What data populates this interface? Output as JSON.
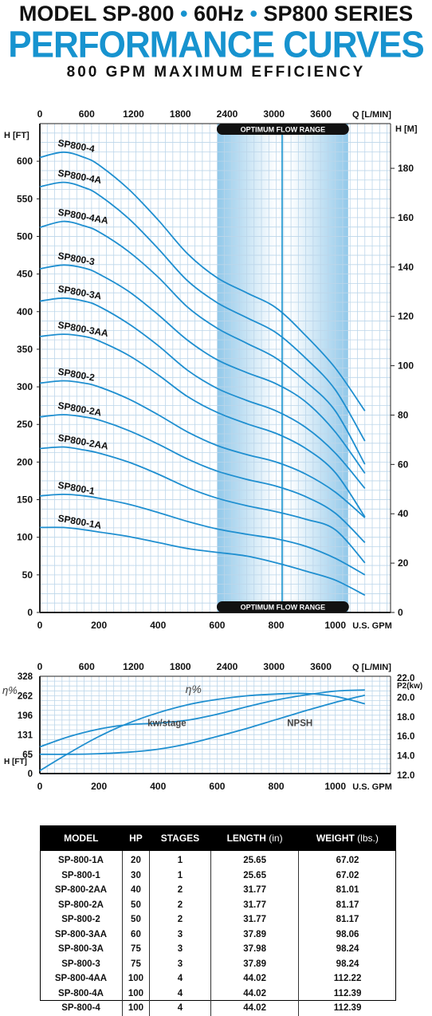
{
  "header": {
    "line1_a": "MODEL SP-800",
    "line1_sep": "•",
    "line1_b": "60Hz",
    "line1_c": "SP800 SERIES",
    "line2": "PERFORMANCE CURVES",
    "line3": "800 GPM MAXIMUM EFFICIENCY"
  },
  "colors": {
    "accent": "#1793cf",
    "curve": "#1f8fd0",
    "band": "#a9d3ef",
    "grid": "#bcd6ea"
  },
  "chart_data": [
    {
      "type": "line",
      "title": "PERFORMANCE CURVES",
      "xlabel": "U.S. GPM",
      "ylabel": "H [FT]",
      "top_axis_label": "Q [L/MIN]",
      "right_axis_label": "H [M]",
      "xlim": [
        0,
        1200
      ],
      "ylim": [
        0,
        650
      ],
      "x_ticks": [
        "0",
        "200",
        "400",
        "600",
        "800",
        "1000"
      ],
      "x_top_ticks": [
        "0",
        "600",
        "1200",
        "1800",
        "2400",
        "3000",
        "3600"
      ],
      "y_ticks": [
        "0",
        "50",
        "100",
        "150",
        "200",
        "250",
        "300",
        "350",
        "400",
        "450",
        "500",
        "550",
        "600"
      ],
      "y_right_ticks": [
        "0",
        "20",
        "40",
        "60",
        "80",
        "100",
        "120",
        "140",
        "160",
        "180"
      ],
      "band": {
        "label": "OPTIMUM FLOW RANGE",
        "x_from": 615,
        "x_to": 1030,
        "marker_x": 820
      },
      "grid": true,
      "series": [
        {
          "name": "SP800-4",
          "x": [
            0,
            80,
            150,
            200,
            300,
            400,
            500,
            600,
            700,
            800,
            900,
            1000,
            1100
          ],
          "y": [
            605,
            612,
            605,
            595,
            563,
            522,
            477,
            445,
            425,
            405,
            368,
            325,
            268
          ]
        },
        {
          "name": "SP800-4A",
          "x": [
            0,
            80,
            150,
            200,
            300,
            400,
            500,
            600,
            700,
            800,
            900,
            1000,
            1100
          ],
          "y": [
            566,
            572,
            565,
            555,
            524,
            484,
            441,
            412,
            392,
            372,
            338,
            296,
            228
          ]
        },
        {
          "name": "SP800-4AA",
          "x": [
            0,
            80,
            150,
            200,
            300,
            400,
            500,
            600,
            700,
            800,
            900,
            1000,
            1100
          ],
          "y": [
            512,
            520,
            514,
            506,
            480,
            446,
            406,
            378,
            358,
            338,
            307,
            268,
            197
          ]
        },
        {
          "name": "SP800-3",
          "x": [
            0,
            80,
            150,
            200,
            300,
            400,
            500,
            600,
            700,
            800,
            900,
            1000,
            1100
          ],
          "y": [
            457,
            462,
            458,
            450,
            427,
            396,
            362,
            336,
            319,
            304,
            280,
            240,
            185
          ]
        },
        {
          "name": "SP800-3A",
          "x": [
            0,
            80,
            150,
            200,
            300,
            400,
            500,
            600,
            700,
            800,
            900,
            1000,
            1100
          ],
          "y": [
            414,
            418,
            414,
            407,
            384,
            355,
            322,
            298,
            282,
            268,
            246,
            212,
            165
          ]
        },
        {
          "name": "SP800-3AA",
          "x": [
            0,
            80,
            150,
            200,
            300,
            400,
            500,
            600,
            700,
            800,
            900,
            1000,
            1100
          ],
          "y": [
            367,
            370,
            367,
            361,
            342,
            316,
            287,
            266,
            251,
            238,
            218,
            186,
            127
          ]
        },
        {
          "name": "SP800-2",
          "x": [
            0,
            80,
            150,
            200,
            300,
            400,
            500,
            600,
            700,
            800,
            900,
            1000,
            1100
          ],
          "y": [
            305,
            308,
            305,
            300,
            284,
            263,
            240,
            222,
            210,
            200,
            184,
            160,
            126
          ]
        },
        {
          "name": "SP800-2A",
          "x": [
            0,
            80,
            150,
            200,
            300,
            400,
            500,
            600,
            700,
            800,
            900,
            1000,
            1100
          ],
          "y": [
            260,
            263,
            260,
            256,
            242,
            224,
            204,
            188,
            177,
            168,
            154,
            132,
            93
          ]
        },
        {
          "name": "SP800-2AA",
          "x": [
            0,
            80,
            150,
            200,
            300,
            400,
            500,
            600,
            700,
            800,
            900,
            1000,
            1100
          ],
          "y": [
            218,
            220,
            216,
            212,
            200,
            184,
            166,
            152,
            142,
            134,
            124,
            110,
            66
          ]
        },
        {
          "name": "SP800-1",
          "x": [
            0,
            80,
            150,
            200,
            300,
            400,
            500,
            600,
            700,
            800,
            900,
            1000,
            1100
          ],
          "y": [
            155,
            157,
            155,
            152,
            144,
            133,
            121,
            111,
            104,
            98,
            88,
            72,
            50
          ]
        },
        {
          "name": "SP800-1A",
          "x": [
            0,
            80,
            150,
            200,
            300,
            400,
            500,
            600,
            700,
            800,
            900,
            1000,
            1100
          ],
          "y": [
            113,
            113,
            110,
            107,
            101,
            93,
            85,
            80,
            75,
            66,
            55,
            43,
            23
          ]
        }
      ]
    },
    {
      "type": "line",
      "xlabel": "U.S. GPM",
      "ylabel": "H [FT]",
      "top_axis_label": "Q [L/MIN]",
      "right_axis_label": "P2(kw)",
      "xlim": [
        0,
        1200
      ],
      "ylim": [
        0,
        328
      ],
      "y_ticks": [
        "0",
        "65",
        "131",
        "196",
        "262",
        "328"
      ],
      "y_ticks_left_label": "η%",
      "x_ticks": [
        "0",
        "200",
        "400",
        "600",
        "800",
        "1000"
      ],
      "x_top_ticks": [
        "0",
        "600",
        "1200",
        "1800",
        "2400",
        "3000",
        "3600"
      ],
      "y_right_ticks": [
        "12.0",
        "14.0",
        "16.0",
        "18.0",
        "20.0",
        "22.0"
      ],
      "y_right_range": [
        12,
        22
      ],
      "annotations": [
        {
          "text": "η%",
          "x": 520,
          "y": 272
        },
        {
          "text": "kw/stage",
          "x": 430,
          "y": 160
        },
        {
          "text": "NPSH",
          "x": 880,
          "y": 160
        }
      ],
      "grid": true,
      "series": [
        {
          "name": "η%",
          "x": [
            0,
            100,
            200,
            300,
            400,
            500,
            600,
            700,
            800,
            900,
            1000,
            1100
          ],
          "y": [
            10,
            70,
            125,
            170,
            205,
            232,
            250,
            262,
            268,
            270,
            260,
            235
          ]
        },
        {
          "name": "kw/stage",
          "x": [
            0,
            100,
            200,
            300,
            400,
            500,
            600,
            700,
            800,
            900,
            1000,
            1100
          ],
          "y": [
            90,
            125,
            150,
            165,
            170,
            180,
            200,
            225,
            248,
            265,
            278,
            282
          ]
        },
        {
          "name": "NPSH",
          "x": [
            0,
            100,
            200,
            300,
            400,
            500,
            600,
            700,
            800,
            900,
            1000,
            1100
          ],
          "y": [
            65,
            65,
            67,
            72,
            82,
            100,
            125,
            152,
            182,
            212,
            240,
            264
          ]
        }
      ]
    }
  ],
  "table": {
    "columns": [
      "MODEL",
      "HP",
      "STAGES",
      "LENGTH",
      "WEIGHT"
    ],
    "units": [
      "",
      "",
      "",
      "(in)",
      "(lbs.)"
    ],
    "rows": [
      [
        "SP-800-1A",
        "20",
        "1",
        "25.65",
        "67.02"
      ],
      [
        "SP-800-1",
        "30",
        "1",
        "25.65",
        "67.02"
      ],
      [
        "SP-800-2AA",
        "40",
        "2",
        "31.77",
        "81.01"
      ],
      [
        "SP-800-2A",
        "50",
        "2",
        "31.77",
        "81.17"
      ],
      [
        "SP-800-2",
        "50",
        "2",
        "31.77",
        "81.17"
      ],
      [
        "SP-800-3AA",
        "60",
        "3",
        "37.89",
        "98.06"
      ],
      [
        "SP-800-3A",
        "75",
        "3",
        "37.98",
        "98.24"
      ],
      [
        "SP-800-3",
        "75",
        "3",
        "37.89",
        "98.24"
      ],
      [
        "SP-800-4AA",
        "100",
        "4",
        "44.02",
        "112.22"
      ],
      [
        "SP-800-4A",
        "100",
        "4",
        "44.02",
        "112.39"
      ],
      [
        "SP-800-4",
        "100",
        "4",
        "44.02",
        "112.39"
      ]
    ]
  }
}
